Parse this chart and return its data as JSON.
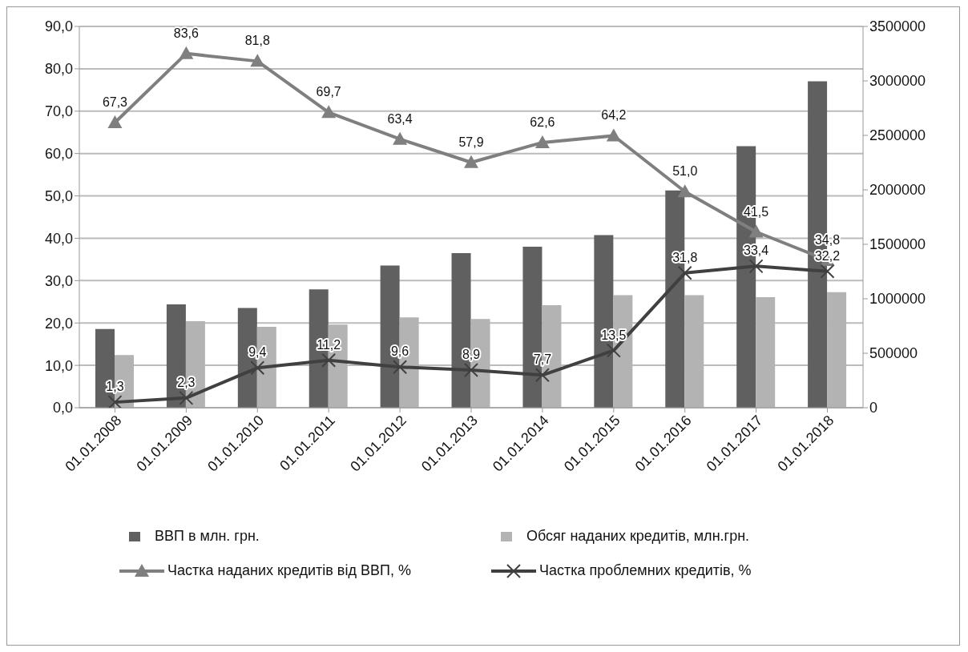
{
  "chart_data": {
    "type": "bar",
    "categories": [
      "01.01.2008",
      "01.01.2009",
      "01.01.2010",
      "01.01.2011",
      "01.01.2012",
      "01.01.2013",
      "01.01.2014",
      "01.01.2015",
      "01.01.2016",
      "01.01.2017",
      "01.01.2018"
    ],
    "series": [
      {
        "name": "ВВП в млн. грн.",
        "axis": "y2",
        "color": "#606060",
        "values": [
          722000,
          948000,
          915000,
          1087000,
          1306000,
          1419000,
          1478000,
          1584000,
          1995000,
          2400000,
          2996000
        ]
      },
      {
        "name": "Обсяг наданих кредитів, млн.грн.",
        "axis": "y2",
        "color": "#b3b3b3",
        "values": [
          484000,
          795000,
          742000,
          762000,
          829000,
          815000,
          941000,
          1034000,
          1034000,
          1014000,
          1061000
        ]
      },
      {
        "name": "Частка наданих кредитів від ВВП, %",
        "type": "line",
        "color": "#7f7f7f",
        "marker": "triangle",
        "values": [
          67.3,
          83.6,
          81.8,
          69.7,
          63.4,
          57.9,
          62.6,
          64.2,
          51.0,
          41.5,
          34.8
        ],
        "value_labels": [
          "67,3",
          "83,6",
          "81,8",
          "69,7",
          "63,4",
          "57,9",
          "62,6",
          "64,2",
          "51,0",
          "41,5",
          "34,8"
        ]
      },
      {
        "name": "Частка проблемних кредитів, %",
        "type": "line",
        "color": "#404040",
        "marker": "cross",
        "values": [
          1.3,
          2.3,
          9.4,
          11.2,
          9.6,
          8.9,
          7.7,
          13.5,
          31.8,
          33.4,
          32.2
        ],
        "value_labels": [
          "1,3",
          "2,3",
          "9,4",
          "11,2",
          "9,6",
          "8,9",
          "7,7",
          "13,5",
          "31,8",
          "33,4",
          "32,2"
        ]
      }
    ],
    "ylim": [
      0,
      90
    ],
    "yticks": [
      {
        "value": 0,
        "label": "0,0"
      },
      {
        "value": 10,
        "label": "10,0"
      },
      {
        "value": 20,
        "label": "20,0"
      },
      {
        "value": 30,
        "label": "30,0"
      },
      {
        "value": 40,
        "label": "40,0"
      },
      {
        "value": 50,
        "label": "50,0"
      },
      {
        "value": 60,
        "label": "60,0"
      },
      {
        "value": 70,
        "label": "70,0"
      },
      {
        "value": 80,
        "label": "80,0"
      },
      {
        "value": 90,
        "label": "90,0"
      }
    ],
    "y2lim": [
      0,
      3500000
    ],
    "y2ticks": [
      0,
      500000,
      1000000,
      1500000,
      2000000,
      2500000,
      3000000,
      3500000
    ],
    "grid": "y",
    "legend": "bottom"
  }
}
